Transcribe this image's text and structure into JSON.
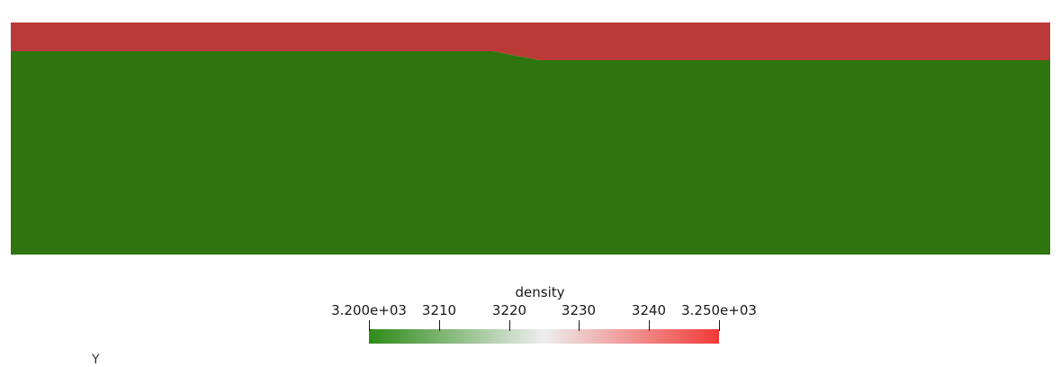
{
  "render": {
    "layers": [
      {
        "name": "top-layer",
        "color": "#b93a37"
      },
      {
        "name": "bottom-layer",
        "color": "#2e750f"
      }
    ]
  },
  "colorbar": {
    "title": "density",
    "ticks": [
      {
        "label": "3.200e+03",
        "value": 3200
      },
      {
        "label": "3210",
        "value": 3210
      },
      {
        "label": "3220",
        "value": 3220
      },
      {
        "label": "3230",
        "value": 3230
      },
      {
        "label": "3240",
        "value": 3240
      },
      {
        "label": "3.250e+03",
        "value": 3250
      }
    ],
    "range": [
      3200,
      3250
    ],
    "colors": {
      "low": "#2e8b19",
      "mid": "#eeeeee",
      "high": "#f03a37"
    }
  },
  "axes": {
    "orientation_label": "Y"
  }
}
